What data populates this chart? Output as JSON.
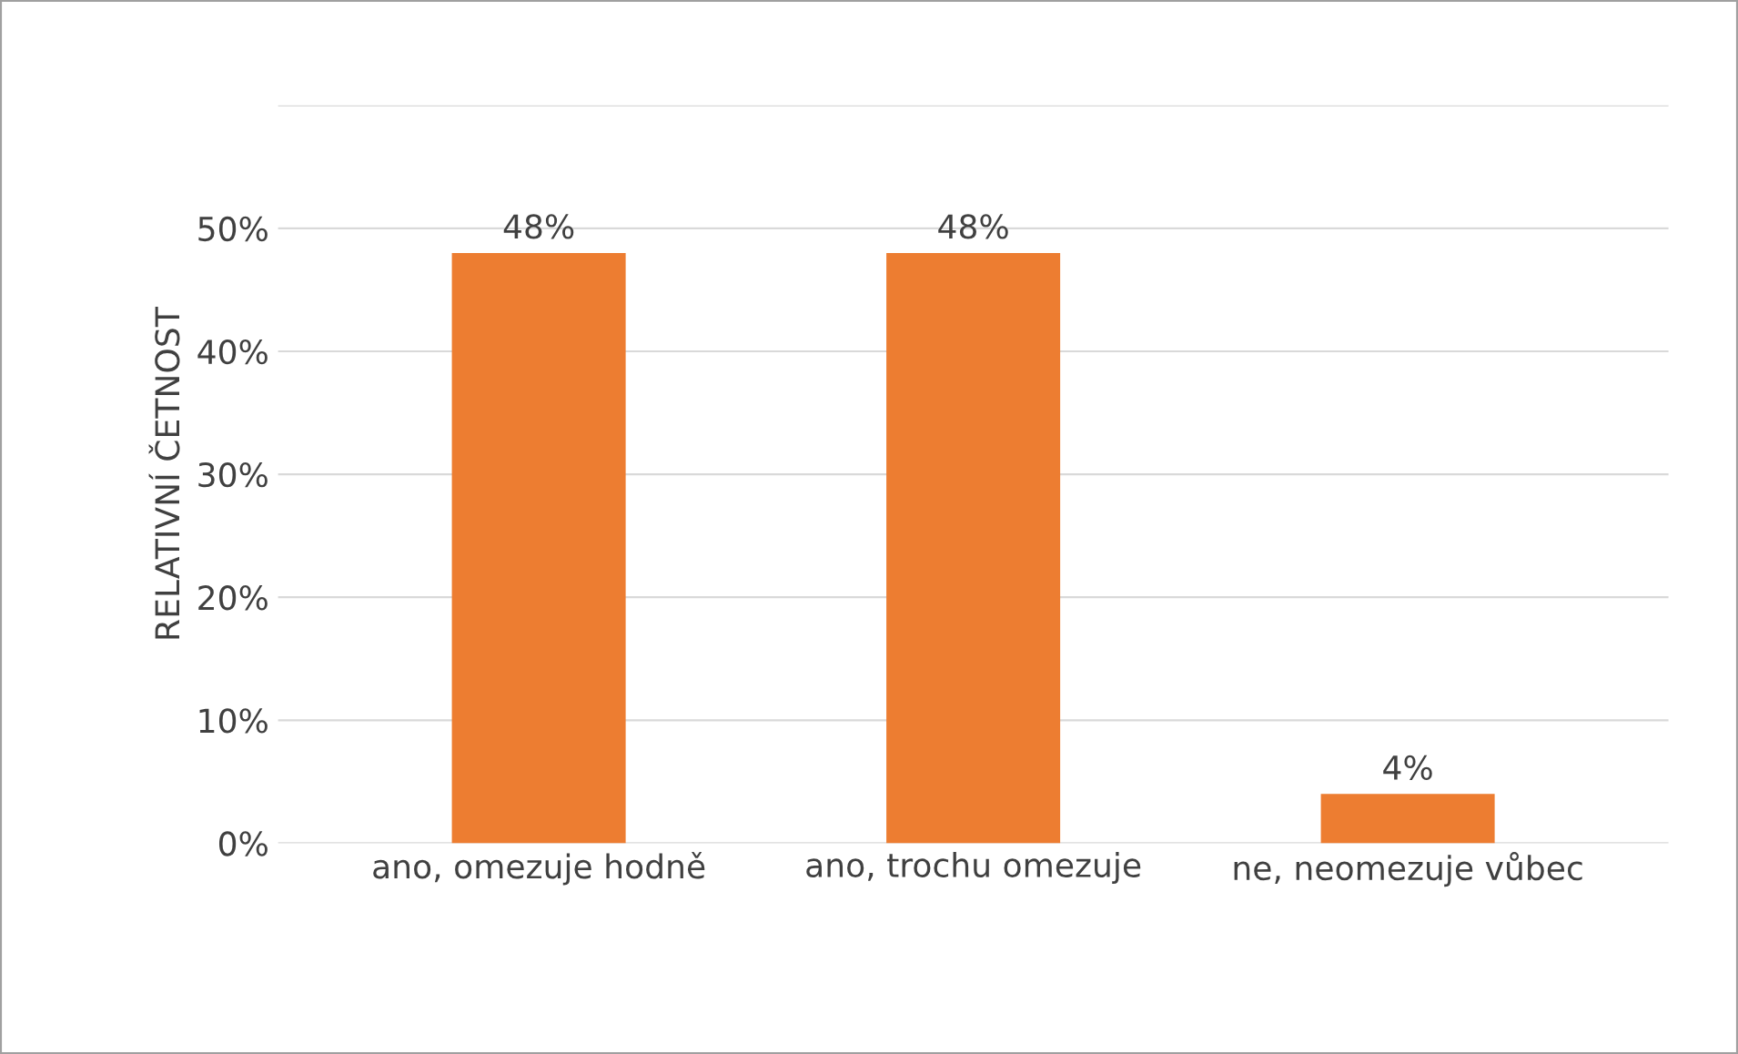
{
  "chart_data": {
    "type": "bar",
    "ylabel": "RELATIVNÍ ČETNOST",
    "categories": [
      "ano, omezuje hodně",
      "ano, trochu omezuje",
      "ne, neomezuje vůbec"
    ],
    "values": [
      48,
      48.0,
      4
    ],
    "value_labels": [
      "48%",
      "48%",
      "4%"
    ],
    "color": "#ed7d31",
    "ylim": [
      0,
      60
    ],
    "yticks": [
      {
        "value": 0,
        "label": "0%"
      },
      {
        "value": 10,
        "label": "10%"
      },
      {
        "value": 20,
        "label": "20%"
      },
      {
        "value": 30,
        "label": "30%"
      },
      {
        "value": 40,
        "label": "40%"
      },
      {
        "value": 50,
        "label": "50%"
      },
      {
        "value": 60,
        "label": null
      }
    ],
    "grid": "y"
  }
}
